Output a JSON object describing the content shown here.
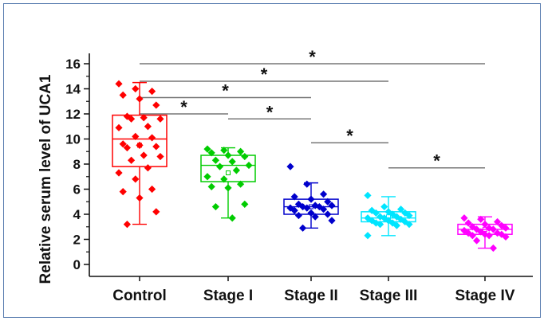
{
  "chart_data": {
    "type": "box",
    "ylabel": "Relative serum level of UCA1",
    "xlabel": "",
    "ylim": [
      -1,
      17
    ],
    "yticks": [
      0,
      2,
      4,
      6,
      8,
      10,
      12,
      14,
      16
    ],
    "categories": [
      "Control",
      "Stage I",
      "Stage II",
      "Stage III",
      "Stage IV"
    ],
    "colors": [
      "#ff0000",
      "#00cc00",
      "#0000cc",
      "#00e5ff",
      "#ff00ff"
    ],
    "series": [
      {
        "category": "Control",
        "q1": 7.8,
        "median": 10.0,
        "q3": 11.9,
        "whisker_low": 3.2,
        "whisker_high": 14.5,
        "mean": 9.5,
        "points": [
          14.4,
          14.0,
          13.8,
          13.5,
          13.2,
          12.7,
          11.8,
          11.7,
          11.6,
          11.6,
          11.0,
          10.9,
          10.2,
          10.1,
          9.6,
          9.5,
          9.4,
          9.3,
          8.7,
          8.6,
          8.3,
          7.7,
          7.3,
          6.8,
          6.0,
          5.8,
          5.3,
          4.2,
          3.2
        ]
      },
      {
        "category": "Stage I",
        "q1": 6.6,
        "median": 7.9,
        "q3": 8.7,
        "whisker_low": 3.7,
        "whisker_high": 9.3,
        "mean": 7.3,
        "points": [
          9.2,
          9.1,
          9.0,
          8.9,
          8.7,
          8.6,
          8.3,
          8.2,
          7.9,
          7.8,
          7.5,
          7.0,
          6.8,
          6.4,
          6.2,
          6.1,
          4.8,
          4.6,
          3.7
        ]
      },
      {
        "category": "Stage II",
        "q1": 4.0,
        "median": 4.6,
        "q3": 5.2,
        "whisker_low": 2.9,
        "whisker_high": 6.5,
        "mean": 4.6,
        "points": [
          7.8,
          6.4,
          5.6,
          5.4,
          5.2,
          5.0,
          4.8,
          4.7,
          4.7,
          4.6,
          4.6,
          4.5,
          4.5,
          4.4,
          4.3,
          4.1,
          4.0,
          3.9,
          3.8,
          3.5,
          2.9
        ]
      },
      {
        "category": "Stage III",
        "q1": 3.4,
        "median": 3.7,
        "q3": 4.2,
        "whisker_low": 2.3,
        "whisker_high": 5.4,
        "mean": 3.8,
        "points": [
          5.5,
          4.6,
          4.4,
          4.3,
          4.2,
          4.1,
          4.1,
          4.0,
          3.9,
          3.8,
          3.8,
          3.7,
          3.7,
          3.6,
          3.5,
          3.5,
          3.4,
          3.3,
          3.3,
          3.2,
          3.2,
          3.1,
          2.3
        ]
      },
      {
        "category": "Stage IV",
        "q1": 2.4,
        "median": 2.8,
        "q3": 3.2,
        "whisker_low": 1.3,
        "whisker_high": 3.8,
        "mean": 2.8,
        "points": [
          3.7,
          3.6,
          3.4,
          3.3,
          3.2,
          3.1,
          3.0,
          2.9,
          2.9,
          2.8,
          2.8,
          2.7,
          2.6,
          2.5,
          2.5,
          2.4,
          2.4,
          2.3,
          2.3,
          2.2,
          1.9,
          1.3
        ]
      }
    ],
    "significance": [
      {
        "from": 0,
        "to": 4,
        "y": 16.0,
        "label": "*"
      },
      {
        "from": 0,
        "to": 3,
        "y": 14.6,
        "label": "*"
      },
      {
        "from": 0,
        "to": 2,
        "y": 13.3,
        "label": "*"
      },
      {
        "from": 0,
        "to": 1,
        "y": 12.0,
        "label": "*"
      },
      {
        "from": 1,
        "to": 2,
        "y": 11.6,
        "label": "*"
      },
      {
        "from": 2,
        "to": 3,
        "y": 9.7,
        "label": "*"
      },
      {
        "from": 3,
        "to": 4,
        "y": 7.7,
        "label": "*"
      }
    ]
  }
}
